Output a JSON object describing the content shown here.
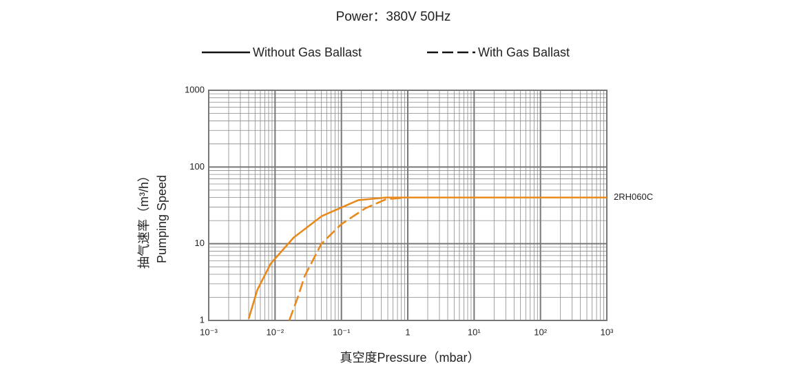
{
  "chart_data": {
    "type": "line",
    "title": "Power：380V 50Hz",
    "x_label": "真空度Pressure（mbar）",
    "y_label": [
      "抽气速率（m³/h）",
      "Pumping Speed"
    ],
    "annotation": "2RH060C",
    "log_x": true,
    "log_y": true,
    "grid": true,
    "xlim": [
      0.001,
      1000
    ],
    "ylim": [
      1,
      1000
    ],
    "xticks": [
      {
        "value": 0.001,
        "label": "10⁻³"
      },
      {
        "value": 0.01,
        "label": "10⁻²"
      },
      {
        "value": 0.1,
        "label": "10⁻¹"
      },
      1,
      {
        "value": 10,
        "label": "10¹"
      },
      {
        "value": 100,
        "label": "10²"
      },
      {
        "value": 1000,
        "label": "10³"
      }
    ],
    "yticks": [
      1,
      10,
      100,
      1000
    ],
    "legend_line_color": "#111111",
    "series": [
      {
        "name": "Without Gas Ballast",
        "color": "#e8891a",
        "dash": false,
        "x": [
          0.004,
          0.0054,
          0.0086,
          0.019,
          0.051,
          0.18,
          0.47,
          1000
        ],
        "values": [
          1.05,
          2.5,
          5.5,
          12,
          23,
          37,
          40,
          40
        ]
      },
      {
        "name": "With Gas Ballast",
        "color": "#e8891a",
        "dash": true,
        "x": [
          0.0164,
          0.022,
          0.028,
          0.05,
          0.1,
          0.23,
          0.47,
          0.95
        ],
        "values": [
          1,
          2,
          3.8,
          10,
          18,
          29,
          38,
          40
        ]
      }
    ]
  }
}
